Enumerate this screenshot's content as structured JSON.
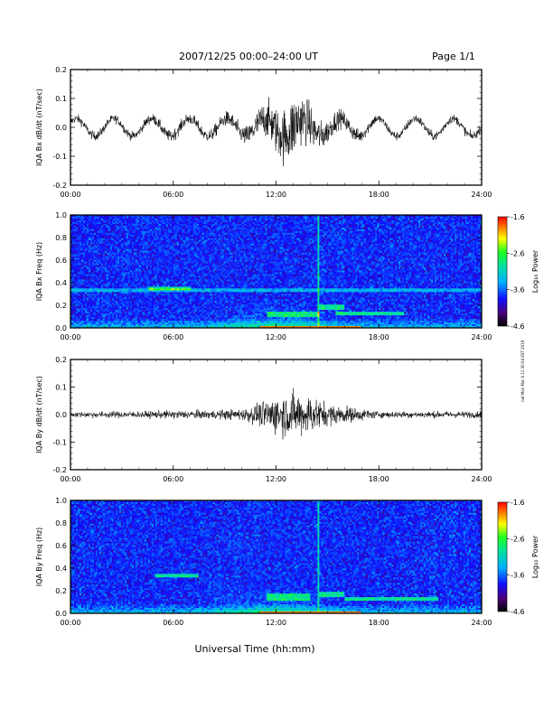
{
  "header": {
    "title": "2007/12/25  00:00–24:00 UT",
    "page": "Page 1/1"
  },
  "xlabel": "Universal Time (hh:mm)",
  "side_note": "nat Mon Mar 4 11:30:04 EST 2019",
  "colorbar": {
    "label": "Log₁₀ Power",
    "ticks": [
      "-1.6",
      "-2.6",
      "-3.6",
      "-4.6"
    ],
    "range": [
      -4.6,
      -1.6
    ]
  },
  "x_ticks": [
    "00:00",
    "06:00",
    "12:00",
    "18:00",
    "24:00"
  ],
  "chart_data": [
    {
      "type": "line",
      "ylabel": "IQA Bx dB/dt (nT/sec)",
      "xlim": [
        0,
        24
      ],
      "ylim": [
        -0.2,
        0.2
      ],
      "y_ticks": [
        "0.2",
        "0.1",
        "0.0",
        "-0.1",
        "-0.2"
      ],
      "x": [
        0,
        2,
        4,
        6,
        8,
        10,
        11,
        12,
        13,
        14,
        15,
        16,
        18,
        20,
        22,
        24
      ],
      "envelope": [
        0.015,
        0.015,
        0.015,
        0.02,
        0.02,
        0.03,
        0.05,
        0.08,
        0.11,
        0.07,
        0.04,
        0.03,
        0.015,
        0.015,
        0.015,
        0.015
      ],
      "wave_amplitude": 0.03,
      "wave_period_hours": 2.2
    },
    {
      "type": "heatmap",
      "ylabel": "IQA Bx Freq (Hz)",
      "xlim": [
        0,
        24
      ],
      "ylim": [
        0,
        1.0
      ],
      "y_ticks": [
        "1.0",
        "0.8",
        "0.6",
        "0.4",
        "0.2",
        "0.0"
      ]
    },
    {
      "type": "line",
      "ylabel": "IQA By dB/dt (nT/sec)",
      "xlim": [
        0,
        24
      ],
      "ylim": [
        -0.2,
        0.2
      ],
      "y_ticks": [
        "0.2",
        "0.1",
        "0.0",
        "-0.1",
        "-0.2"
      ],
      "x": [
        0,
        2,
        4,
        6,
        8,
        10,
        11,
        12,
        13,
        14,
        15,
        16,
        18,
        20,
        22,
        24
      ],
      "envelope": [
        0.01,
        0.012,
        0.012,
        0.015,
        0.015,
        0.02,
        0.04,
        0.07,
        0.08,
        0.07,
        0.04,
        0.03,
        0.012,
        0.012,
        0.012,
        0.012
      ],
      "wave_amplitude": 0.0,
      "wave_period_hours": 2.2
    },
    {
      "type": "heatmap",
      "ylabel": "IQA By Freq (Hz)",
      "xlim": [
        0,
        24
      ],
      "ylim": [
        0,
        1.0
      ],
      "y_ticks": [
        "1.0",
        "0.8",
        "0.6",
        "0.4",
        "0.2",
        "0.0"
      ]
    }
  ]
}
